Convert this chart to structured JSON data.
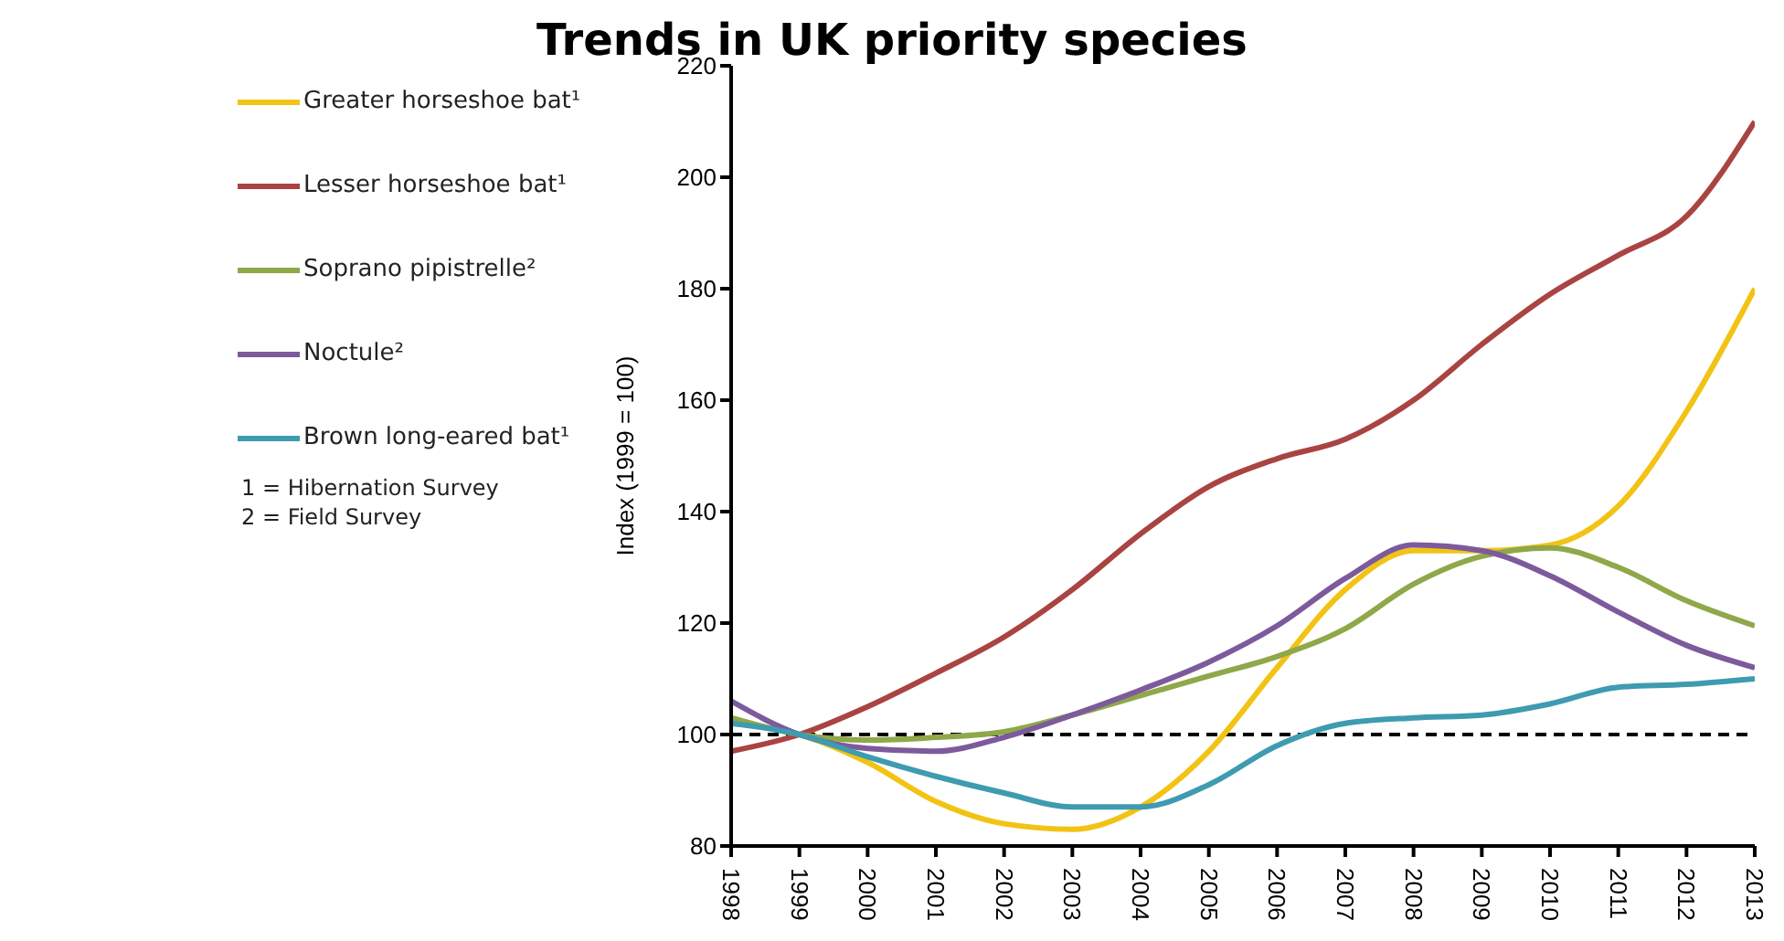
{
  "chart_data": {
    "type": "line",
    "title": "Trends in UK priority species",
    "ylabel": "Index (1999 = 100)",
    "x": [
      1998,
      1999,
      2000,
      2001,
      2002,
      2003,
      2004,
      2005,
      2006,
      2007,
      2008,
      2009,
      2010,
      2011,
      2012,
      2013
    ],
    "series": [
      {
        "name": "Greater horseshoe bat¹",
        "color": "#f2c314",
        "values": [
          102,
          100,
          95,
          88,
          84,
          83,
          87,
          97,
          112,
          126,
          133,
          133,
          134,
          141,
          158,
          180
        ]
      },
      {
        "name": "Lesser horseshoe bat¹",
        "color": "#a94442",
        "values": [
          97,
          100,
          105,
          111,
          117.5,
          126,
          136,
          144.5,
          149.5,
          153,
          160,
          170,
          179,
          186,
          193,
          210
        ]
      },
      {
        "name": "Soprano pipistrelle²",
        "color": "#8ea84a",
        "values": [
          103,
          100,
          99,
          99.5,
          100.5,
          103.5,
          107,
          110.5,
          114,
          119,
          127,
          132,
          133.5,
          130,
          124,
          119.5
        ]
      },
      {
        "name": "Noctule²",
        "color": "#7d5a9c",
        "values": [
          106,
          100,
          97.5,
          97,
          99.5,
          103.5,
          108,
          113,
          119.5,
          128,
          134,
          133,
          128.5,
          122,
          116,
          112
        ]
      },
      {
        "name": "Brown long-eared bat¹",
        "color": "#3e9bb0",
        "values": [
          102,
          100,
          96,
          92.5,
          89.5,
          87,
          87,
          91,
          98,
          102,
          103,
          103.5,
          105.5,
          108.5,
          109,
          110
        ]
      }
    ],
    "xlim": [
      1998,
      2013
    ],
    "xticks": [
      1998,
      1999,
      2000,
      2001,
      2002,
      2003,
      2004,
      2005,
      2006,
      2007,
      2008,
      2009,
      2010,
      2011,
      2012,
      2013
    ],
    "ylim": [
      80,
      220
    ],
    "yticks": [
      80,
      100,
      120,
      140,
      160,
      180,
      200,
      220
    ],
    "ref_lines": [
      {
        "axis": "y",
        "value": 100,
        "color": "#000000",
        "line_style": "dashed"
      }
    ],
    "annotations": [
      "1 = Hibernation Survey",
      "2 = Field Survey"
    ],
    "legend": "top left",
    "grid": false,
    "marker": "none",
    "line_style": "solid"
  }
}
